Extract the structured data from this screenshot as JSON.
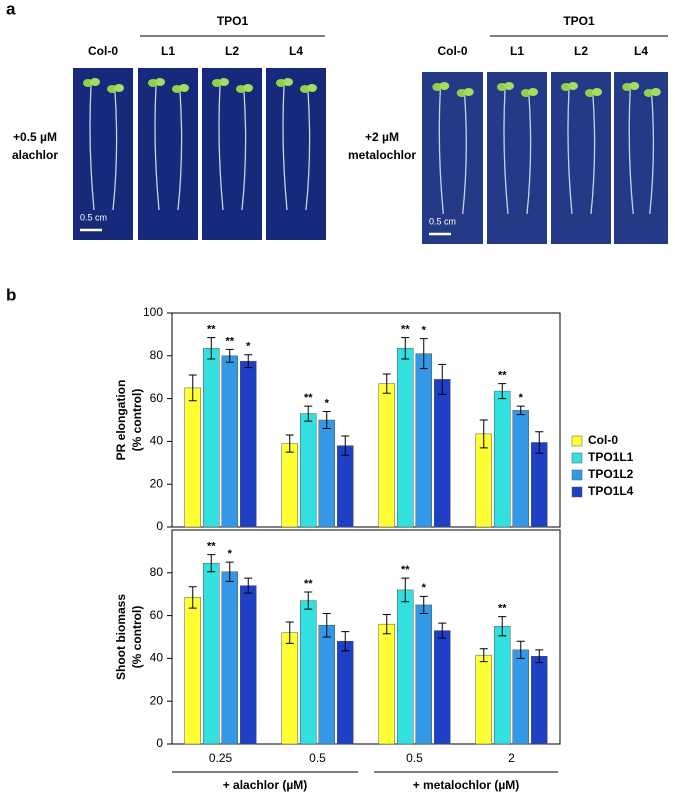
{
  "panel_labels": [
    "a",
    "b"
  ],
  "photos": [
    {
      "treatment": [
        "+0.5 µM",
        "alachlor"
      ],
      "group": "TPO1",
      "lines": [
        "Col-0",
        "L1",
        "L2",
        "L4"
      ],
      "scale_bar": "0.5 cm"
    },
    {
      "treatment": [
        "+2 µM",
        "metalochlor"
      ],
      "group": "TPO1",
      "lines": [
        "Col-0",
        "L1",
        "L2",
        "L4"
      ],
      "scale_bar": "0.5 cm"
    }
  ],
  "chart_data": [
    {
      "type": "bar",
      "y_label": [
        "PR elongation",
        "(% control)"
      ],
      "ylim": [
        0,
        100
      ],
      "yticks": [
        0,
        20,
        40,
        60,
        80,
        100
      ],
      "series": [
        {
          "name": "Col-0",
          "color": "#ffff33",
          "values": [
            65,
            39,
            67,
            43.5
          ],
          "errors": [
            6,
            4,
            4.5,
            6.5
          ],
          "significance": [
            null,
            null,
            null,
            null
          ]
        },
        {
          "name": "TPO1L1",
          "color": "#33e0e0",
          "values": [
            83.5,
            53,
            83.5,
            63.5
          ],
          "errors": [
            5,
            3.5,
            5,
            3.5
          ],
          "significance": [
            "**",
            "**",
            "**",
            "**"
          ]
        },
        {
          "name": "TPO1L2",
          "color": "#3399e6",
          "values": [
            80,
            50,
            81,
            54.5
          ],
          "errors": [
            3,
            4,
            7,
            2
          ],
          "significance": [
            "**",
            "*",
            "*",
            "*"
          ]
        },
        {
          "name": "TPO1L4",
          "color": "#1f3fc4",
          "values": [
            77.5,
            38,
            69,
            39.5
          ],
          "errors": [
            3,
            4.5,
            7,
            5
          ],
          "significance": [
            "*",
            null,
            null,
            null
          ]
        }
      ]
    },
    {
      "type": "bar",
      "y_label": [
        "Shoot biomass",
        "(% control)"
      ],
      "ylim": [
        0,
        100
      ],
      "yticks": [
        0,
        20,
        40,
        60,
        80
      ],
      "categories": [
        "0.25",
        "0.5",
        "0.5",
        "2"
      ],
      "groups": [
        {
          "label": "+ alachlor (µM)",
          "span": [
            0,
            1
          ]
        },
        {
          "label": "+ metalochlor (µM)",
          "span": [
            2,
            3
          ]
        }
      ],
      "series": [
        {
          "color": "#ffff33",
          "values": [
            68.5,
            52,
            56,
            41.5
          ],
          "errors": [
            5,
            5,
            4.5,
            3
          ],
          "significance": [
            null,
            null,
            null,
            null
          ]
        },
        {
          "color": "#33e0e0",
          "values": [
            84.5,
            67,
            72,
            55
          ],
          "errors": [
            4,
            4,
            5.5,
            4.5
          ],
          "significance": [
            "**",
            "**",
            "**",
            "**"
          ]
        },
        {
          "color": "#3399e6",
          "values": [
            80.5,
            55.5,
            65,
            44
          ],
          "errors": [
            4.5,
            5.5,
            4,
            4
          ],
          "significance": [
            "*",
            null,
            "*",
            null
          ]
        },
        {
          "color": "#1f3fc4",
          "values": [
            74,
            48,
            53,
            41
          ],
          "errors": [
            3.5,
            4.5,
            3.5,
            3
          ],
          "significance": [
            null,
            null,
            null,
            null
          ]
        }
      ]
    }
  ]
}
